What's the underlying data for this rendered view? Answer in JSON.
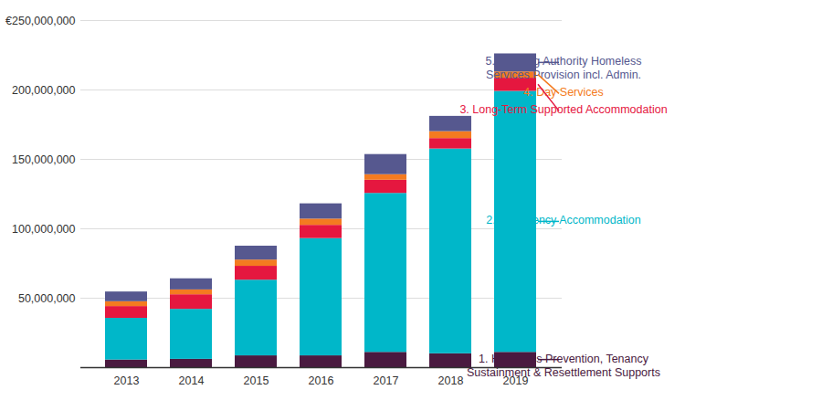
{
  "chart_data": {
    "type": "bar",
    "stacked": true,
    "categories": [
      "2013",
      "2014",
      "2015",
      "2016",
      "2017",
      "2018",
      "2019"
    ],
    "series": [
      {
        "name": "1. Homeless Prevention, Tenancy Sustainment & Resettlement Supports",
        "color": "#4a1a40",
        "values": [
          5500000,
          6000000,
          8500000,
          8500000,
          11000000,
          10000000,
          11000000
        ]
      },
      {
        "name": "2. Emergency Accommodation",
        "color": "#00b7c9",
        "values": [
          30000000,
          36000000,
          54500000,
          84500000,
          114500000,
          147500000,
          188000000
        ]
      },
      {
        "name": "3. Long-Term Supported Accommodation",
        "color": "#e5173f",
        "values": [
          8500000,
          10500000,
          10000000,
          9500000,
          9500000,
          7500000,
          9500000
        ]
      },
      {
        "name": "4. Day Services",
        "color": "#f47b20",
        "values": [
          3500000,
          3500000,
          4500000,
          4500000,
          4000000,
          5000000,
          4500000
        ]
      },
      {
        "name": "5. Housing Authority Homeless Services Provision incl. Admin.",
        "color": "#56588f",
        "values": [
          7000000,
          8000000,
          10000000,
          11000000,
          14500000,
          11000000,
          13000000
        ]
      }
    ],
    "ylim": [
      0,
      250000000
    ],
    "yticks": [
      {
        "value": 50000000,
        "label": "50,000,000"
      },
      {
        "value": 100000000,
        "label": "100,000,000"
      },
      {
        "value": 150000000,
        "label": "150,000,000"
      },
      {
        "value": 200000000,
        "label": "200,000,000"
      },
      {
        "value": 250000000,
        "label": "€250,000,000"
      }
    ],
    "grid": true,
    "legend": "right"
  }
}
